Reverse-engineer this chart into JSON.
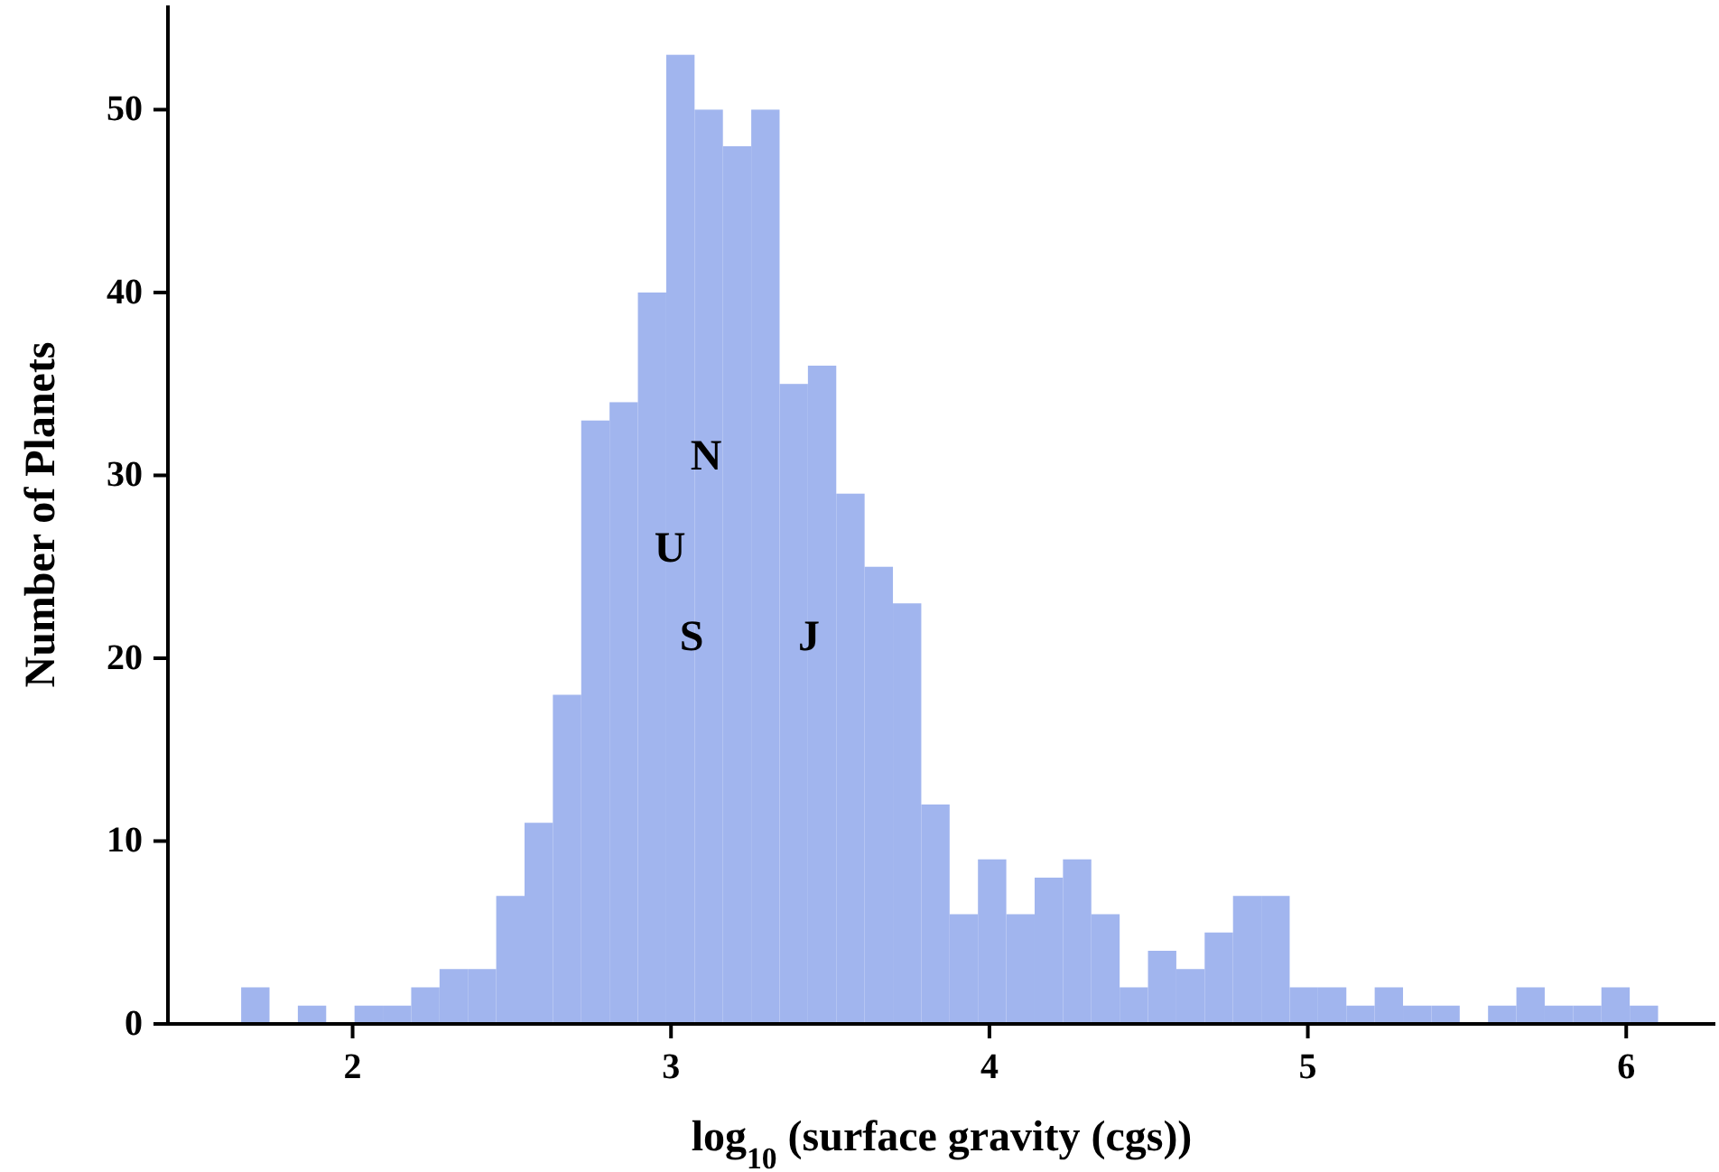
{
  "chart_data": {
    "type": "histogram",
    "xlabel": "log$_{10}$ (surface gravity (cgs))",
    "ylabel": "Number of Planets",
    "color": "#a1b5ee",
    "bins": [
      1.65,
      1.739,
      1.828,
      1.917,
      2.006,
      2.095,
      2.184,
      2.273,
      2.362,
      2.451,
      2.54,
      2.629,
      2.718,
      2.807,
      2.896,
      2.985,
      3.074,
      3.163,
      3.252,
      3.341,
      3.43,
      3.519,
      3.608,
      3.697,
      3.786,
      3.875,
      3.964,
      4.053,
      4.142,
      4.231,
      4.32,
      4.409,
      4.498,
      4.587,
      4.676,
      4.765,
      4.854,
      4.943,
      5.032,
      5.121,
      5.21,
      5.299,
      5.388,
      5.477,
      5.566,
      5.655,
      5.744,
      5.833,
      5.922,
      6.011,
      6.1
    ],
    "values": [
      2,
      0,
      1,
      0,
      1,
      1,
      2,
      3,
      3,
      7,
      11,
      18,
      33,
      34,
      40,
      53,
      50,
      48,
      50,
      35,
      36,
      29,
      25,
      23,
      12,
      6,
      9,
      6,
      8,
      9,
      6,
      2,
      4,
      3,
      5,
      7,
      7,
      2,
      2,
      1,
      2,
      1,
      1,
      0,
      1,
      2,
      1,
      1,
      2,
      1
    ],
    "xlim": [
      1.42,
      6.28
    ],
    "ylim": [
      0,
      55.7
    ],
    "xticks": [
      2,
      3,
      4,
      5,
      6
    ],
    "yticks": [
      0,
      10,
      20,
      30,
      40,
      50
    ],
    "annotations": [
      "N",
      "U",
      "S",
      "J"
    ]
  }
}
